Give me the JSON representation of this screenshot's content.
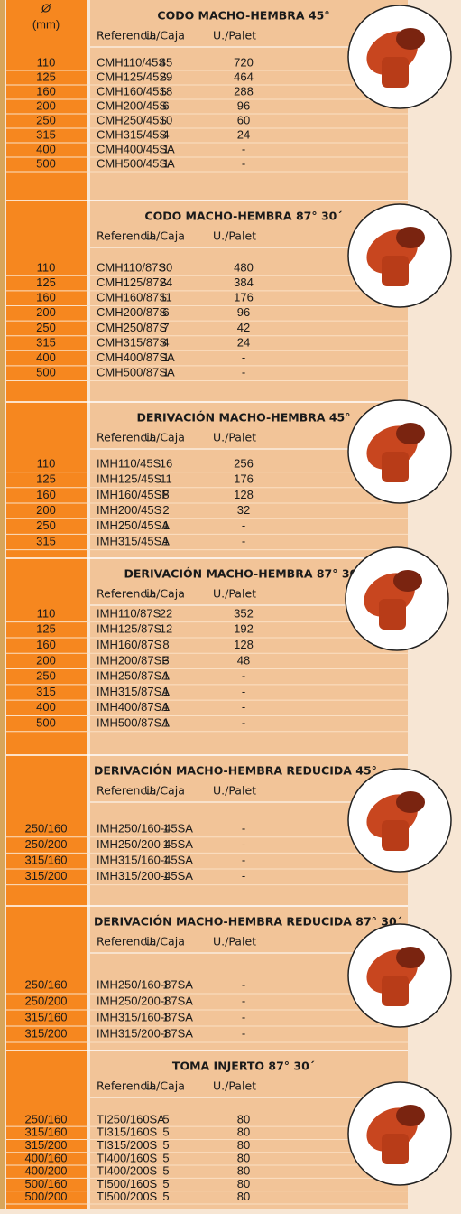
{
  "header": {
    "diameter_symbol": "Ø",
    "diameter_unit": "(mm)"
  },
  "sections": [
    {
      "title": "CODO MACHO-HEMBRA 45°",
      "columns": [
        "Referencia",
        "U./Caja",
        "U./Palet"
      ],
      "rows": [
        [
          "110",
          "CMH110/45S",
          "45",
          "720"
        ],
        [
          "125",
          "CMH125/45S",
          "29",
          "464"
        ],
        [
          "160",
          "CMH160/45S",
          "18",
          "288"
        ],
        [
          "200",
          "CMH200/45S",
          "6",
          "96"
        ],
        [
          "250",
          "CMH250/45S",
          "10",
          "60"
        ],
        [
          "315",
          "CMH315/45S",
          "4",
          "24"
        ],
        [
          "400",
          "CMH400/45SA",
          "1",
          "-"
        ],
        [
          "500",
          "CMH500/45SA",
          "1",
          "-"
        ]
      ]
    },
    {
      "title": "CODO MACHO-HEMBRA 87° 30´",
      "columns": [
        "Referencia",
        "U./Caja",
        "U./Palet"
      ],
      "rows": [
        [
          "110",
          "CMH110/87S",
          "30",
          "480"
        ],
        [
          "125",
          "CMH125/87S",
          "24",
          "384"
        ],
        [
          "160",
          "CMH160/87S",
          "11",
          "176"
        ],
        [
          "200",
          "CMH200/87S",
          "6",
          "96"
        ],
        [
          "250",
          "CMH250/87S",
          "7",
          "42"
        ],
        [
          "315",
          "CMH315/87S",
          "4",
          "24"
        ],
        [
          "400",
          "CMH400/87SA",
          "1",
          "-"
        ],
        [
          "500",
          "CMH500/87SA",
          "1",
          "-"
        ]
      ]
    },
    {
      "title": "DERIVACIÓN MACHO-HEMBRA 45°",
      "columns": [
        "Referencia",
        "U./Caja",
        "U./Palet"
      ],
      "rows": [
        [
          "110",
          "IMH110/45S",
          "16",
          "256"
        ],
        [
          "125",
          "IMH125/45S",
          "11",
          "176"
        ],
        [
          "160",
          "IMH160/45SF",
          "8",
          "128"
        ],
        [
          "200",
          "IMH200/45S",
          "2",
          "32"
        ],
        [
          "250",
          "IMH250/45SA",
          "1",
          "-"
        ],
        [
          "315",
          "IMH315/45SA",
          "1",
          "-"
        ]
      ]
    },
    {
      "title": "DERIVACIÓN MACHO-HEMBRA 87° 30´",
      "columns": [
        "Referencia",
        "U./Caja",
        "U./Palet"
      ],
      "rows": [
        [
          "110",
          "IMH110/87S",
          "22",
          "352"
        ],
        [
          "125",
          "IMH125/87S",
          "12",
          "192"
        ],
        [
          "160",
          "IMH160/87S",
          "8",
          "128"
        ],
        [
          "200",
          "IMH200/87SF",
          "3",
          "48"
        ],
        [
          "250",
          "IMH250/87SA",
          "1",
          "-"
        ],
        [
          "315",
          "IMH315/87SA",
          "1",
          "-"
        ],
        [
          "400",
          "IMH400/87SA",
          "1",
          "-"
        ],
        [
          "500",
          "IMH500/87SA",
          "1",
          "-"
        ]
      ]
    },
    {
      "title": "DERIVACIÓN MACHO-HEMBRA REDUCIDA 45°",
      "columns": [
        "Referencia",
        "U./Caja",
        "U./Palet"
      ],
      "rows": [
        [
          "250/160",
          "IMH250/160-45SA",
          "1",
          "-"
        ],
        [
          "250/200",
          "IMH250/200-45SA",
          "1",
          "-"
        ],
        [
          "315/160",
          "IMH315/160-45SA",
          "1",
          "-"
        ],
        [
          "315/200",
          "IMH315/200-45SA",
          "1",
          "-"
        ]
      ]
    },
    {
      "title": "DERIVACIÓN MACHO-HEMBRA REDUCIDA 87° 30´",
      "columns": [
        "Referencia",
        "U./Caja",
        "U./Palet"
      ],
      "rows": [
        [
          "250/160",
          "IMH250/160-87SA",
          "1",
          "-"
        ],
        [
          "250/200",
          "IMH250/200-87SA",
          "1",
          "-"
        ],
        [
          "315/160",
          "IMH315/160-87SA",
          "1",
          "-"
        ],
        [
          "315/200",
          "IMH315/200-87SA",
          "1",
          "-"
        ]
      ]
    },
    {
      "title": "TOMA INJERTO 87° 30´",
      "columns": [
        "Referencia",
        "U./Caja",
        "U./Palet"
      ],
      "rows": [
        [
          "250/160",
          "TI250/160SA",
          "5",
          "80"
        ],
        [
          "315/160",
          "TI315/160S",
          "5",
          "80"
        ],
        [
          "315/200",
          "TI315/200S",
          "5",
          "80"
        ],
        [
          "400/160",
          "TI400/160S",
          "5",
          "80"
        ],
        [
          "400/200",
          "TI400/200S",
          "5",
          "80"
        ],
        [
          "500/160",
          "TI500/160S",
          "5",
          "80"
        ],
        [
          "500/200",
          "TI500/200S",
          "5",
          "80"
        ]
      ]
    }
  ]
}
